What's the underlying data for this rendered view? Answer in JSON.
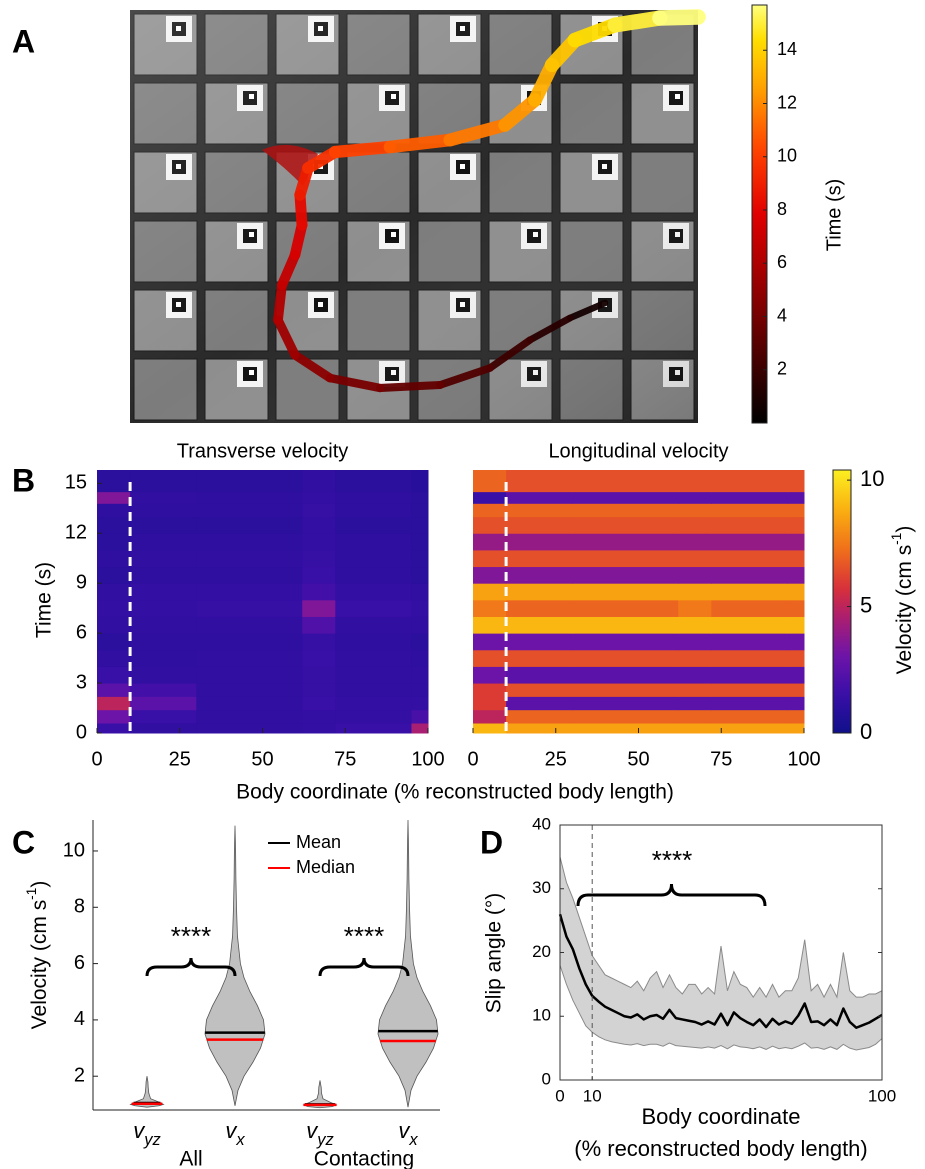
{
  "chart_data": [
    {
      "type": "image",
      "panel": "A",
      "colorbar": {
        "label": "Time (s)",
        "lim": [
          0,
          15.7
        ],
        "ticks": [
          2,
          4,
          6,
          8,
          10,
          12,
          14
        ]
      }
    },
    {
      "type": "heatmap",
      "panel": "B",
      "xlabel": "Body coordinate (% reconstructed body length)",
      "ylabel": "Time (s)",
      "xlim": [
        0,
        100
      ],
      "xticks": [
        0,
        25,
        50,
        75,
        100
      ],
      "ylim": [
        0,
        15.8
      ],
      "yticks": [
        0,
        3,
        6,
        9,
        12,
        15
      ],
      "marker_x": 10,
      "xbins": [
        0,
        10,
        30,
        62,
        72,
        95,
        100
      ],
      "ybins": [
        0,
        0.6,
        1.4,
        2.2,
        3,
        4,
        5,
        6,
        7,
        8,
        9,
        10,
        11,
        12,
        13,
        13.8,
        14.5,
        15.8
      ],
      "plots": [
        {
          "title": "Transverse velocity",
          "z": [
            [
              1.5,
              1.2,
              1.2,
              1.3,
              1.5,
              4.5
            ],
            [
              3,
              1.5,
              1.2,
              1.3,
              1.3,
              2
            ],
            [
              5,
              2.5,
              1.2,
              1.5,
              1.3,
              1.3
            ],
            [
              2.5,
              1.8,
              1.2,
              1.4,
              1.2,
              1.2
            ],
            [
              1.5,
              1.2,
              1.2,
              1.4,
              1.2,
              1.2
            ],
            [
              1.2,
              1.1,
              1.2,
              1.5,
              1.2,
              1.1
            ],
            [
              1.0,
              1.1,
              1.1,
              1.4,
              1.1,
              1.0
            ],
            [
              1.2,
              1.2,
              1.2,
              2.2,
              1.2,
              1.2
            ],
            [
              1.3,
              1.3,
              1.4,
              3.5,
              1.5,
              1.3
            ],
            [
              1.2,
              1.3,
              1.3,
              1.8,
              1.3,
              1.2
            ],
            [
              1.0,
              1.1,
              1.1,
              1.5,
              1.1,
              1.0
            ],
            [
              1.1,
              1.2,
              1.2,
              1.4,
              1.1,
              1.0
            ],
            [
              1.0,
              1.1,
              1.1,
              1.3,
              1.1,
              1.0
            ],
            [
              1.0,
              1.0,
              1.0,
              1.3,
              1.0,
              1.0
            ],
            [
              1.1,
              1.1,
              1.1,
              1.4,
              1.1,
              1.0
            ],
            [
              3.5,
              1.2,
              1.1,
              1.3,
              1.1,
              1.0
            ],
            [
              1.0,
              1.0,
              1.0,
              1.2,
              1.0,
              0.9
            ]
          ]
        },
        {
          "title": "Longitudinal velocity",
          "z": [
            [
              9,
              8.5,
              8.5,
              8.5,
              8.5,
              8.5
            ],
            [
              5,
              7,
              7,
              7,
              7,
              7
            ],
            [
              6,
              2.5,
              2.5,
              2.5,
              2.5,
              2.5
            ],
            [
              6,
              6.5,
              6.5,
              6.5,
              6.5,
              6.5
            ],
            [
              3,
              2.5,
              2.5,
              2.5,
              2.5,
              2.5
            ],
            [
              6.5,
              6.5,
              6.5,
              6.5,
              6.5,
              6.5
            ],
            [
              3,
              3,
              3,
              3,
              3,
              3
            ],
            [
              9,
              9,
              9,
              9,
              9,
              9
            ],
            [
              7.5,
              7,
              7,
              7.5,
              7,
              7
            ],
            [
              8.5,
              8.5,
              8.5,
              8.5,
              8.5,
              8.5
            ],
            [
              3.5,
              3.5,
              3.5,
              3.5,
              3.5,
              3.5
            ],
            [
              6.5,
              6.5,
              6.5,
              6.5,
              6.5,
              6.5
            ],
            [
              4,
              4,
              4,
              4,
              4,
              4
            ],
            [
              6.5,
              6.5,
              6.5,
              6.5,
              6.5,
              6.5
            ],
            [
              7,
              7,
              7,
              7,
              7,
              7
            ],
            [
              1.5,
              2.5,
              2.5,
              2.5,
              2.5,
              2.5
            ],
            [
              7,
              6.5,
              6.5,
              6.5,
              6.5,
              6.5
            ]
          ]
        }
      ],
      "colorbar": {
        "label": {
          "text": "Velocity (cm s",
          "sup": "-1",
          "end": ")"
        },
        "lim": [
          0,
          10.4
        ],
        "ticks": [
          0,
          5,
          10
        ]
      }
    },
    {
      "type": "violin",
      "panel": "C",
      "ylabel": {
        "text": "Velocity (cm s",
        "sup": "-1",
        "end": ")"
      },
      "ylim": [
        0.8,
        11.1
      ],
      "yticks": [
        2,
        4,
        6,
        8,
        10
      ],
      "color": "#c0c0c0",
      "legend": [
        {
          "name": "Mean",
          "color": "#000000"
        },
        {
          "name": "Median",
          "color": "#ff0000"
        }
      ],
      "groups": [
        {
          "name": "All",
          "annotation": "****",
          "violins": [
            {
              "label": {
                "base": "v",
                "sub": "yz"
              },
              "mean": 1.05,
              "median": 1.02,
              "profile": {
                "y": [
                  0.9,
                  0.95,
                  1.0,
                  1.1,
                  1.2,
                  1.4,
                  1.6,
                  1.8,
                  2.0
                ],
                "width": [
                  0,
                  0.4,
                  0.55,
                  0.35,
                  0.12,
                  0.06,
                  0.04,
                  0.03,
                  0
                ]
              }
            },
            {
              "label": {
                "base": "v",
                "sub": "x"
              },
              "mean": 3.55,
              "median": 3.3,
              "profile": {
                "y": [
                  0.95,
                  1.5,
                  2,
                  2.5,
                  3,
                  3.5,
                  4,
                  4.5,
                  5,
                  5.5,
                  6,
                  7,
                  8,
                  9,
                  10,
                  10.9
                ],
                "width": [
                  0,
                  0.1,
                  0.3,
                  0.6,
                  0.85,
                  1,
                  0.95,
                  0.75,
                  0.5,
                  0.3,
                  0.18,
                  0.08,
                  0.05,
                  0.03,
                  0.02,
                  0
                ]
              }
            }
          ]
        },
        {
          "name": "Contacting",
          "annotation": "****",
          "violins": [
            {
              "label": {
                "base": "v",
                "sub": "yz"
              },
              "mean": 1.0,
              "median": 0.98,
              "profile": {
                "y": [
                  0.88,
                  0.92,
                  0.98,
                  1.08,
                  1.2,
                  1.4,
                  1.6,
                  1.85
                ],
                "width": [
                  0,
                  0.4,
                  0.55,
                  0.33,
                  0.1,
                  0.05,
                  0.04,
                  0
                ]
              }
            },
            {
              "label": {
                "base": "v",
                "sub": "x"
              },
              "mean": 3.6,
              "median": 3.25,
              "profile": {
                "y": [
                  0.9,
                  1.5,
                  2,
                  2.5,
                  3,
                  3.5,
                  4,
                  4.5,
                  5,
                  5.5,
                  6,
                  7,
                  8,
                  9,
                  10,
                  11.1
                ],
                "width": [
                  0,
                  0.1,
                  0.3,
                  0.6,
                  0.85,
                  1,
                  0.95,
                  0.75,
                  0.5,
                  0.3,
                  0.18,
                  0.08,
                  0.05,
                  0.03,
                  0.02,
                  0
                ]
              }
            }
          ]
        }
      ]
    },
    {
      "type": "line",
      "panel": "D",
      "ylabel": "Slip angle (°)",
      "xlabel": [
        "Body coordinate",
        "(% reconstructed body length)"
      ],
      "xlim": [
        0,
        100
      ],
      "xticks": [
        0,
        10,
        100
      ],
      "ylim": [
        0,
        40
      ],
      "yticks": [
        0,
        10,
        20,
        30,
        40
      ],
      "marker_x": 10,
      "annotation": "****",
      "color": "#000000",
      "band_color": "#d3d3d3",
      "x": [
        0,
        2,
        4,
        6,
        8,
        10,
        12,
        14,
        16,
        18,
        20,
        22,
        24,
        26,
        28,
        30,
        32,
        34,
        36,
        38,
        40,
        42,
        44,
        46,
        48,
        50,
        52,
        54,
        56,
        58,
        60,
        62,
        64,
        66,
        68,
        70,
        72,
        74,
        76,
        78,
        80,
        82,
        84,
        86,
        88,
        90,
        92,
        94,
        96,
        98,
        100
      ],
      "values": [
        26,
        22.5,
        20.5,
        17.5,
        15,
        13.2,
        12.3,
        11.5,
        11,
        10.5,
        10,
        9.8,
        10.3,
        9.5,
        10,
        10.2,
        9.6,
        11,
        9.7,
        9.5,
        9.3,
        9.1,
        8.7,
        9.2,
        8.7,
        10.4,
        8.6,
        10.6,
        9.7,
        9.1,
        8.6,
        9.5,
        8.3,
        9.6,
        8.7,
        9.2,
        8.8,
        10.1,
        12,
        9.1,
        9.2,
        8.6,
        9.5,
        8.6,
        11.2,
        9.1,
        8.2,
        8.6,
        9,
        9.6,
        10.2
      ],
      "upper": [
        35,
        31,
        28.5,
        25.5,
        22.5,
        19.5,
        18,
        16.5,
        16,
        15.5,
        15,
        14.5,
        15.5,
        14,
        16,
        17,
        14.5,
        16.5,
        14.5,
        13.5,
        15,
        15,
        13.5,
        14.5,
        13.5,
        21,
        14,
        17,
        15,
        14.5,
        13,
        14.5,
        13,
        15,
        13,
        14,
        14,
        16,
        22,
        14,
        15,
        13,
        15,
        13,
        20,
        14,
        13,
        13,
        13.5,
        13.5,
        14
      ],
      "lower": [
        18,
        15,
        12.5,
        10.5,
        8.5,
        7.5,
        6.8,
        6.3,
        6,
        5.8,
        5.6,
        5.5,
        5.7,
        5.4,
        5.6,
        5.6,
        5.3,
        5.8,
        5.4,
        5.3,
        5.2,
        5.1,
        5,
        5.2,
        5,
        5.4,
        4.9,
        5.5,
        5.2,
        5.1,
        4.9,
        5.2,
        4.8,
        5.3,
        4.9,
        5.1,
        4.9,
        5.3,
        5.8,
        5,
        5.1,
        4.8,
        5.2,
        4.8,
        5.6,
        5,
        4.7,
        4.9,
        5.1,
        5.6,
        6.5
      ]
    }
  ]
}
